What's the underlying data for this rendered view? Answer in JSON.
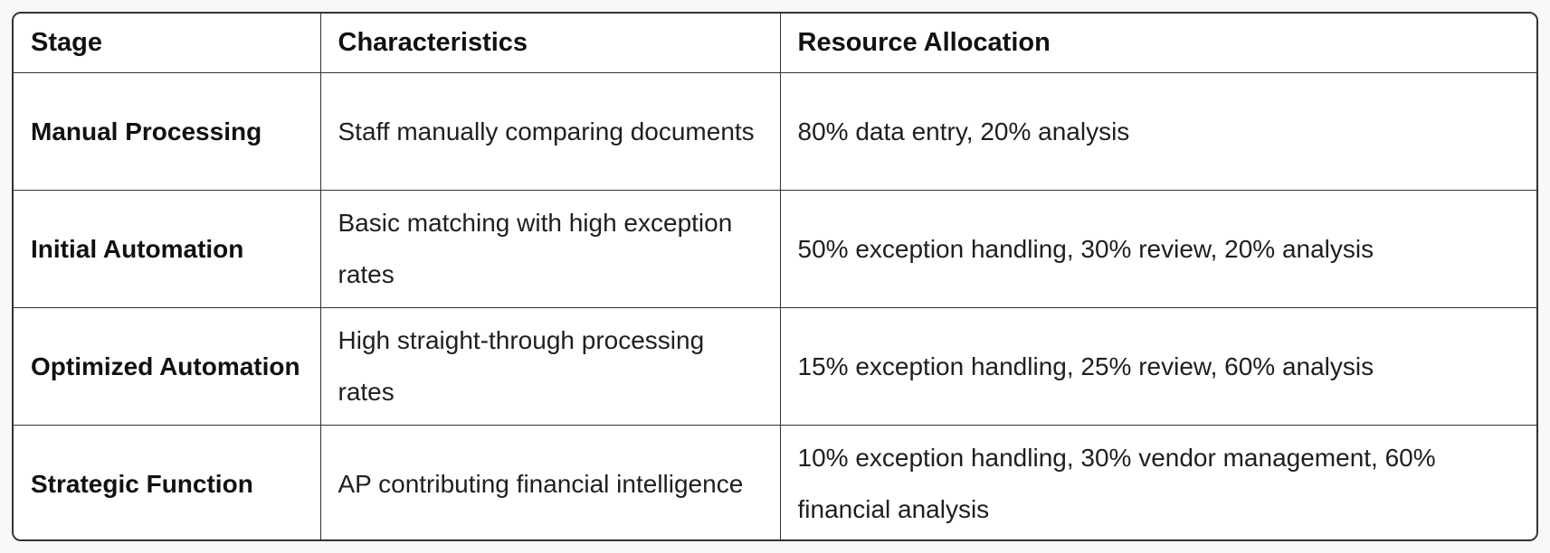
{
  "page": {
    "background_color": "#f7f8f9"
  },
  "table": {
    "title": "AP automation stages table",
    "border_color": "#333333",
    "cell_background": "#ffffff",
    "text_color": "#1f1f1f",
    "columns": [
      {
        "label": "Stage"
      },
      {
        "label": "Characteristics"
      },
      {
        "label": "Resource Allocation"
      }
    ],
    "rows": [
      {
        "stage": "Manual Processing",
        "characteristics": "Staff manually comparing documents",
        "resource_allocation": "80% data entry, 20% analysis"
      },
      {
        "stage": "Initial Automation",
        "characteristics": "Basic matching with high exception rates",
        "resource_allocation": "50% exception handling, 30% review, 20% analysis"
      },
      {
        "stage": "Optimized Automation",
        "characteristics": "High straight-through processing rates",
        "resource_allocation": "15% exception handling, 25% review, 60% analysis"
      },
      {
        "stage": "Strategic Function",
        "characteristics": "AP contributing financial intelligence",
        "resource_allocation": "10% exception handling, 30% vendor management, 60% financial analysis"
      }
    ]
  }
}
